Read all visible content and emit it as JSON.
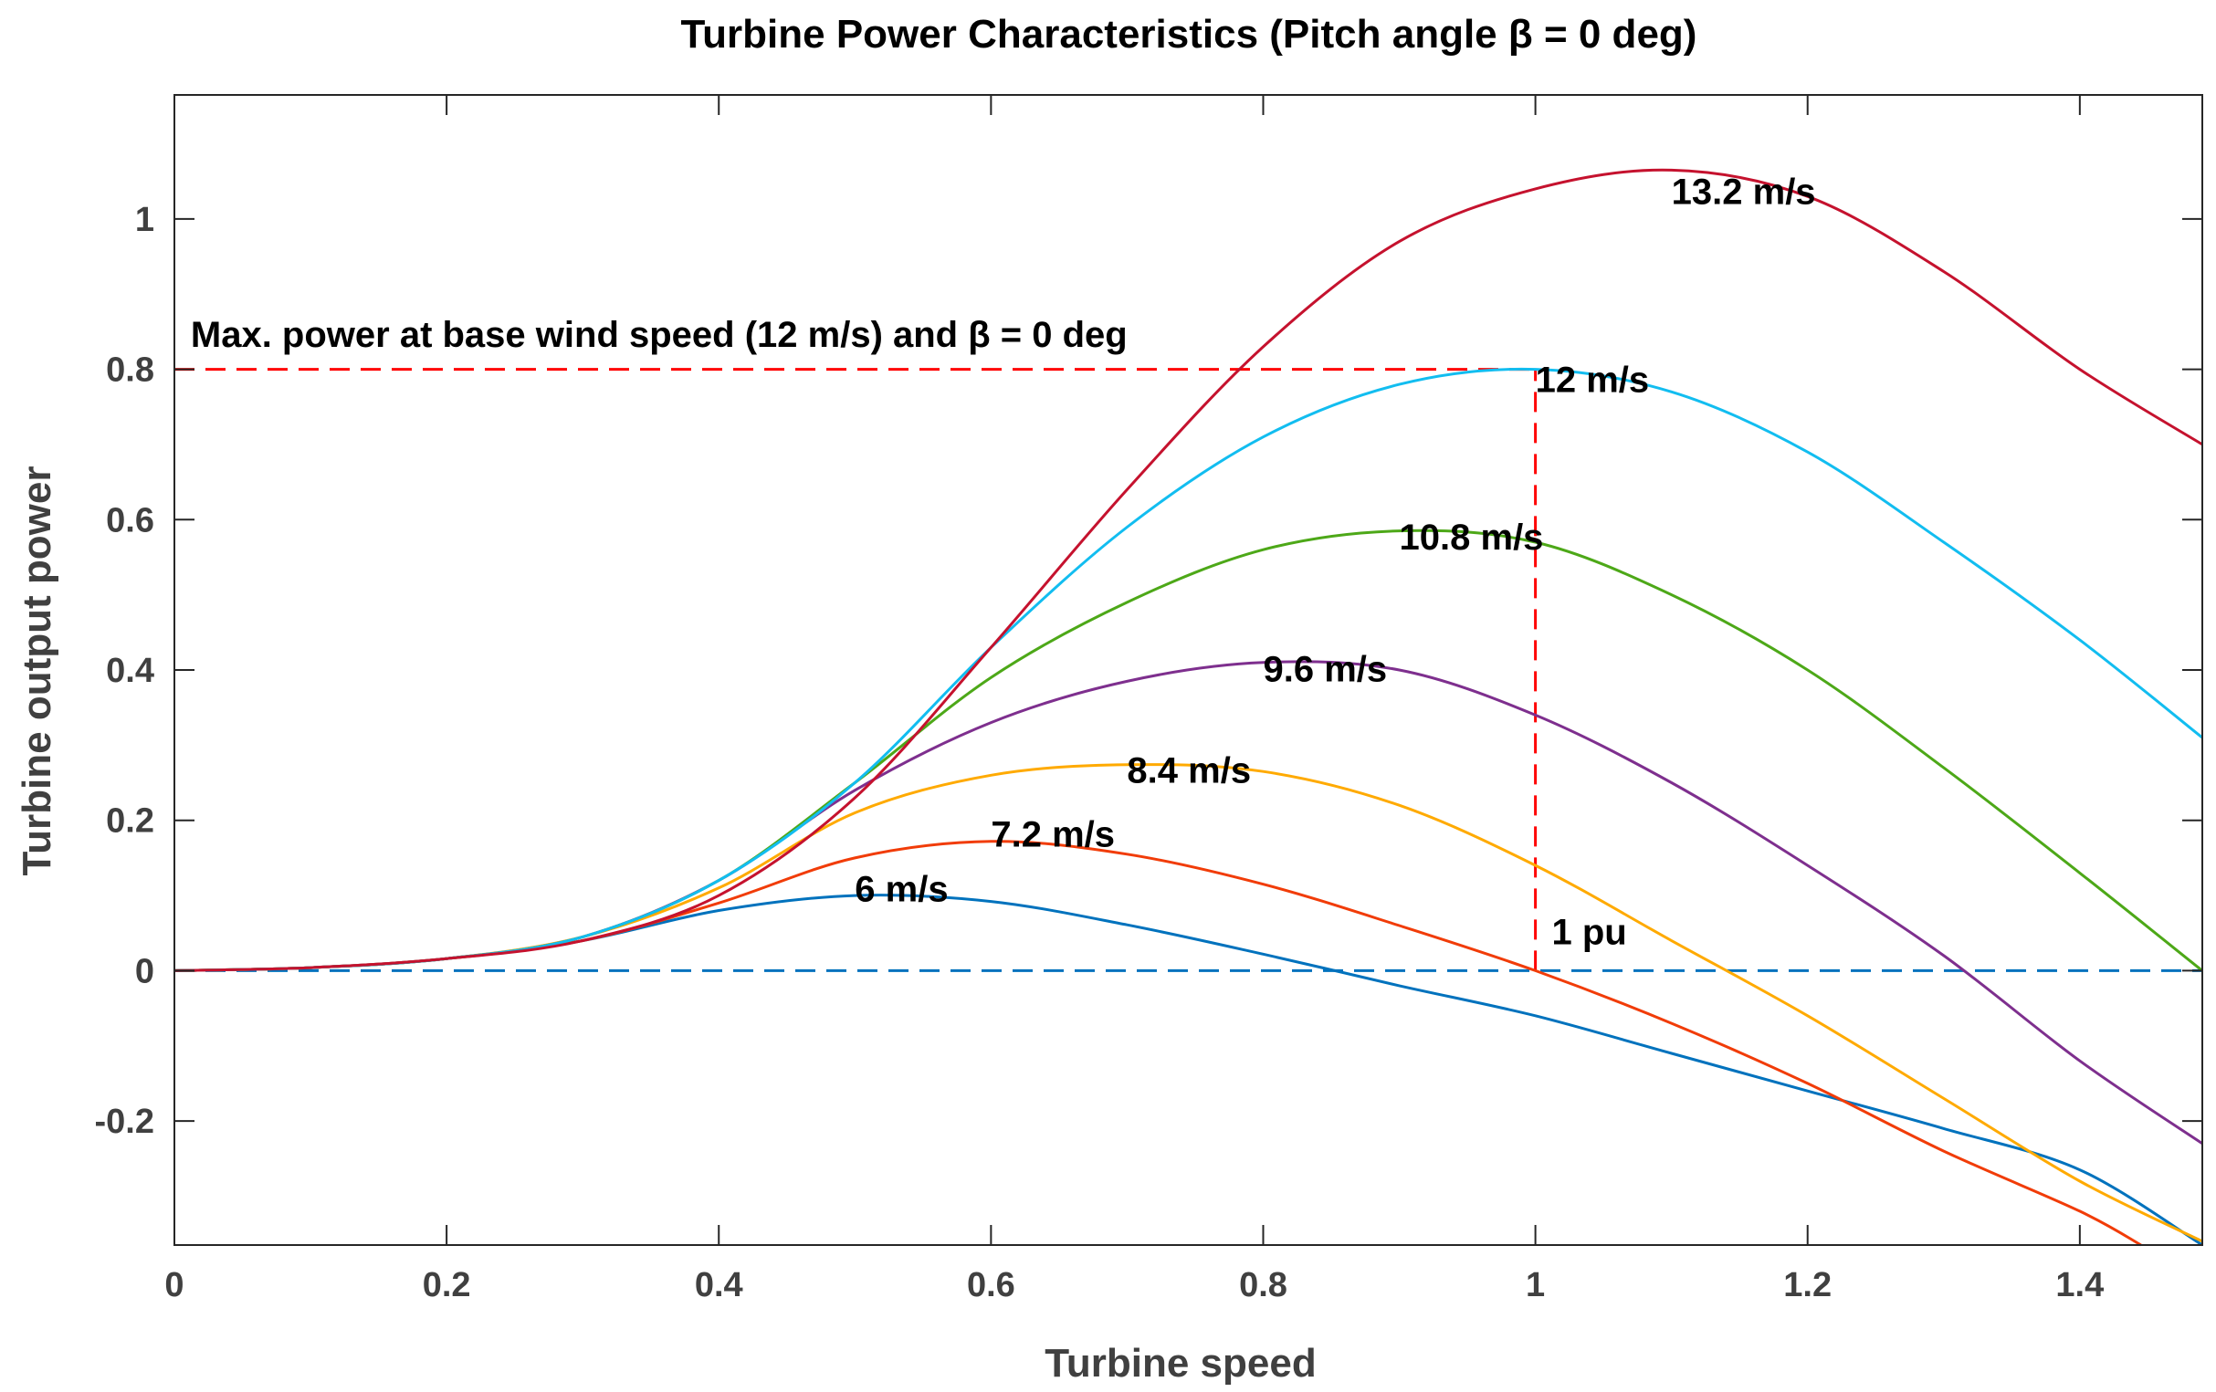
{
  "chart_data": {
    "type": "line",
    "title": "Turbine Power Characteristics (Pitch angle β = 0 deg)",
    "xlabel": "Turbine speed",
    "ylabel": "Turbine output power",
    "xlim": [
      0,
      1.49
    ],
    "ylim": [
      -0.365,
      1.165
    ],
    "xticks": [
      0,
      0.2,
      0.4,
      0.6,
      0.8,
      1,
      1.2,
      1.4
    ],
    "xtick_labels": [
      "0",
      "0.2",
      "0.4",
      "0.6",
      "0.8",
      "1",
      "1.2",
      "1.4"
    ],
    "yticks": [
      -0.2,
      0,
      0.2,
      0.4,
      0.6,
      0.8,
      1
    ],
    "ytick_labels": [
      "-0.2",
      "0",
      "0.2",
      "0.4",
      "0.6",
      "0.8",
      "1"
    ],
    "grid": false,
    "series": [
      {
        "name": "6 m/s",
        "label": "6 m/s",
        "color": "#0072BD",
        "x": [
          0,
          0.1,
          0.2,
          0.3,
          0.4,
          0.5,
          0.6,
          0.7,
          0.8,
          0.9,
          1.0,
          1.1,
          1.2,
          1.3,
          1.4,
          1.49
        ],
        "y": [
          0,
          0.004,
          0.016,
          0.04,
          0.08,
          0.1,
          0.092,
          0.061,
          0.022,
          -0.02,
          -0.06,
          -0.11,
          -0.16,
          -0.21,
          -0.265,
          -0.365
        ],
        "label_x": 0.5,
        "label_y": 0.092
      },
      {
        "name": "7.2 m/s",
        "label": "7.2 m/s",
        "color": "#F13C08",
        "x": [
          0,
          0.1,
          0.2,
          0.3,
          0.4,
          0.5,
          0.6,
          0.7,
          0.8,
          0.9,
          1.0,
          1.1,
          1.2,
          1.3,
          1.4,
          1.445
        ],
        "y": [
          0,
          0.004,
          0.016,
          0.04,
          0.09,
          0.15,
          0.172,
          0.155,
          0.115,
          0.06,
          0.0,
          -0.07,
          -0.15,
          -0.24,
          -0.32,
          -0.365
        ],
        "label_x": 0.6,
        "label_y": 0.165
      },
      {
        "name": "8.4 m/s",
        "label": "8.4 m/s",
        "color": "#FFAA00",
        "x": [
          0,
          0.1,
          0.2,
          0.3,
          0.4,
          0.5,
          0.6,
          0.7,
          0.8,
          0.9,
          1.0,
          1.1,
          1.2,
          1.3,
          1.4,
          1.49
        ],
        "y": [
          0,
          0.004,
          0.016,
          0.045,
          0.11,
          0.21,
          0.26,
          0.274,
          0.265,
          0.22,
          0.14,
          0.04,
          -0.06,
          -0.17,
          -0.28,
          -0.36
        ],
        "label_x": 0.7,
        "label_y": 0.25
      },
      {
        "name": "9.6 m/s",
        "label": "9.6 m/s",
        "color": "#7E2F8E",
        "x": [
          0,
          0.1,
          0.2,
          0.3,
          0.4,
          0.5,
          0.6,
          0.7,
          0.8,
          0.9,
          1.0,
          1.1,
          1.2,
          1.3,
          1.4,
          1.49
        ],
        "y": [
          0,
          0.004,
          0.016,
          0.045,
          0.12,
          0.24,
          0.33,
          0.385,
          0.41,
          0.4,
          0.34,
          0.25,
          0.14,
          0.02,
          -0.12,
          -0.23
        ],
        "label_x": 0.8,
        "label_y": 0.385
      },
      {
        "name": "10.8 m/s",
        "label": "10.8 m/s",
        "color": "#4DA818",
        "x": [
          0,
          0.1,
          0.2,
          0.3,
          0.4,
          0.5,
          0.6,
          0.7,
          0.8,
          0.9,
          1.0,
          1.1,
          1.2,
          1.3,
          1.4,
          1.49
        ],
        "y": [
          0,
          0.004,
          0.016,
          0.045,
          0.12,
          0.25,
          0.39,
          0.49,
          0.56,
          0.585,
          0.57,
          0.5,
          0.4,
          0.27,
          0.13,
          0.0
        ],
        "label_x": 0.9,
        "label_y": 0.56
      },
      {
        "name": "12 m/s",
        "label": "12 m/s",
        "color": "#12BDF0",
        "x": [
          0,
          0.1,
          0.2,
          0.3,
          0.4,
          0.5,
          0.6,
          0.7,
          0.8,
          0.9,
          1.0,
          1.1,
          1.2,
          1.3,
          1.4,
          1.49
        ],
        "y": [
          0,
          0.004,
          0.016,
          0.045,
          0.12,
          0.25,
          0.43,
          0.59,
          0.71,
          0.78,
          0.8,
          0.77,
          0.69,
          0.57,
          0.44,
          0.31
        ],
        "label_x": 1.0,
        "label_y": 0.77
      },
      {
        "name": "13.2 m/s",
        "label": "13.2 m/s",
        "color": "#C5122E",
        "x": [
          0,
          0.1,
          0.2,
          0.3,
          0.4,
          0.5,
          0.6,
          0.7,
          0.8,
          0.9,
          1.0,
          1.1,
          1.2,
          1.3,
          1.4,
          1.49
        ],
        "y": [
          0,
          0.004,
          0.016,
          0.04,
          0.1,
          0.23,
          0.43,
          0.64,
          0.83,
          0.97,
          1.04,
          1.065,
          1.03,
          0.93,
          0.8,
          0.7
        ],
        "label_x": 1.1,
        "label_y": 1.02
      }
    ],
    "reference_lines": [
      {
        "name": "max-power-line",
        "color": "#FF0000",
        "x": [
          0,
          1
        ],
        "y": [
          0.8,
          0.8
        ]
      },
      {
        "name": "one-pu-line",
        "color": "#FF0000",
        "x": [
          1,
          1
        ],
        "y": [
          0,
          0.8
        ]
      },
      {
        "name": "zero-line",
        "color": "#0072BD",
        "x": [
          0,
          1.49
        ],
        "y": [
          0,
          0
        ]
      }
    ],
    "annotations": [
      {
        "text": "Max. power at base wind speed (12 m/s) and β = 0 deg",
        "x": 0.012,
        "y": 0.83
      },
      {
        "text": "1 pu",
        "x": 1.012,
        "y": 0.035
      }
    ]
  }
}
